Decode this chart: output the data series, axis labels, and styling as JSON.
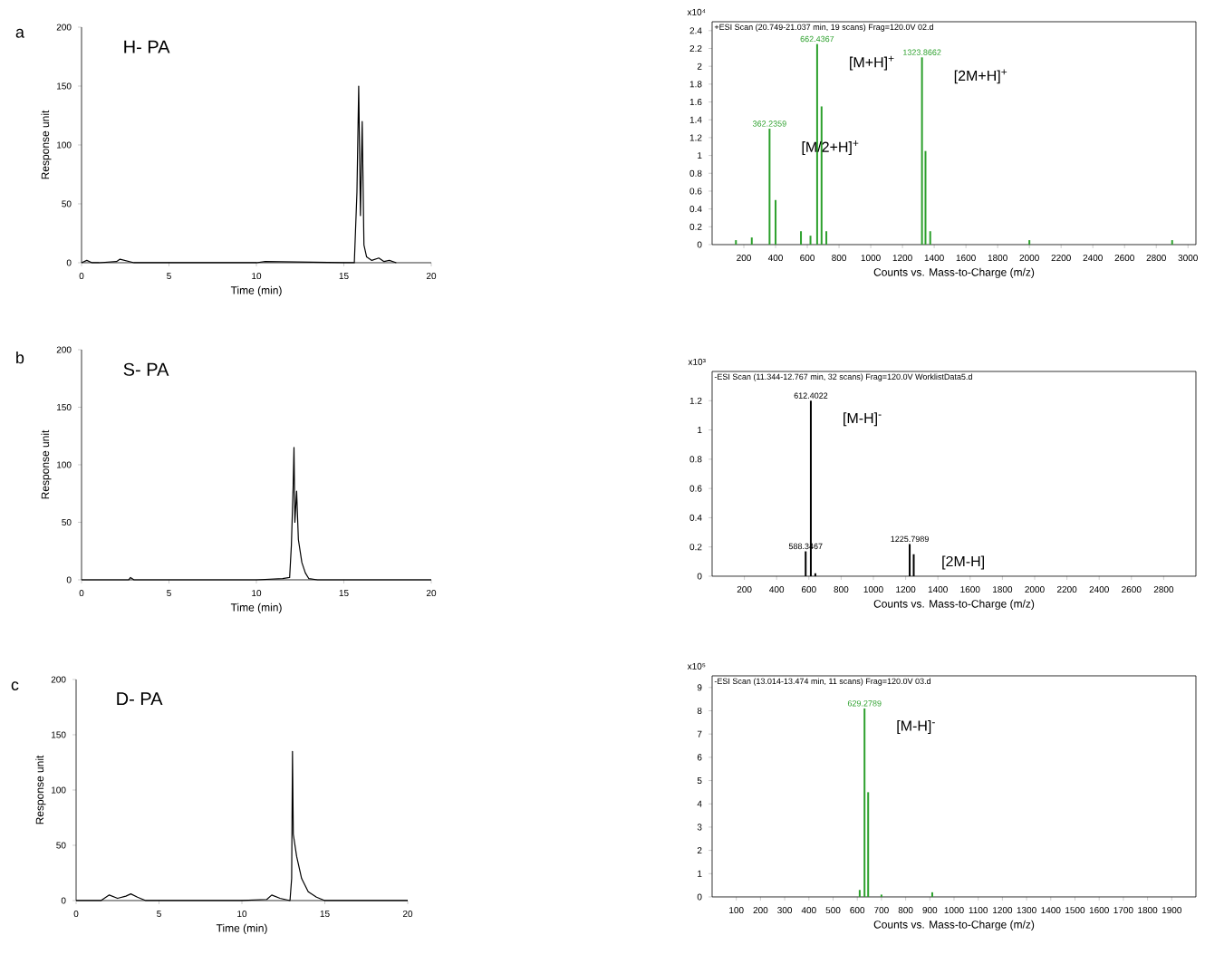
{
  "chart_data": [
    {
      "type": "line",
      "title": "H- PA",
      "xlabel": "Time (min)",
      "ylabel": "Response unit",
      "annotations": [
        "a"
      ],
      "color": "#000000",
      "x": [
        0,
        0.3,
        0.6,
        1,
        2,
        2.2,
        3,
        5,
        10,
        10.5,
        15,
        15.6,
        15.75,
        15.85,
        15.95,
        16.05,
        16.15,
        16.3,
        16.6,
        17,
        17.3,
        17.6,
        18
      ],
      "values": [
        0,
        2,
        0,
        0,
        1,
        3,
        0,
        0,
        0,
        1,
        0,
        0,
        60,
        150,
        40,
        120,
        15,
        5,
        2,
        4,
        1,
        2,
        0
      ],
      "xlim": [
        0,
        20
      ],
      "ylim": [
        0,
        200
      ],
      "xticks": [
        0,
        5,
        10,
        15,
        20
      ],
      "yticks": [
        0,
        50,
        100,
        150,
        200
      ]
    },
    {
      "type": "bar",
      "title": "+ESI Scan (20.749-21.037 min, 19 scans) Frag=120.0V 02.d",
      "xlabel": "Counts vs. Mass-to-Charge (m/z)",
      "annotations": [
        "x10⁴",
        {
          "text": "362.2359",
          "x": 362,
          "y": 1.3
        },
        {
          "text": "662.4367",
          "x": 662,
          "y": 2.25
        },
        {
          "text": "1323.8662",
          "x": 1323,
          "y": 2.1
        },
        {
          "text": "[M/2+H]$^{+}$",
          "x": 362,
          "y": 1.3
        },
        {
          "text": "[M+H]$^{+}$",
          "x": 662,
          "y": 2.25
        },
        {
          "text": "[2M+H]$^{+}$",
          "x": 1323,
          "y": 2.1
        }
      ],
      "color": "#2ca02c",
      "x": [
        150,
        250,
        362,
        400,
        560,
        620,
        662,
        690,
        720,
        1323,
        1345,
        1375,
        2000,
        2900
      ],
      "values": [
        0.05,
        0.08,
        1.3,
        0.5,
        0.15,
        0.1,
        2.25,
        1.55,
        0.15,
        2.1,
        1.05,
        0.15,
        0.05,
        0.05
      ],
      "xlim": [
        0,
        3050
      ],
      "ylim": [
        0,
        2.5
      ],
      "xticks": [
        200,
        400,
        600,
        800,
        1000,
        1200,
        1400,
        1600,
        1800,
        2000,
        2200,
        2400,
        2600,
        2800,
        3000
      ],
      "yticks": [
        0,
        0.2,
        0.4,
        0.6,
        0.8,
        1,
        1.2,
        1.4,
        1.6,
        1.8,
        2,
        2.2,
        2.4
      ]
    },
    {
      "type": "line",
      "title": "S- PA",
      "xlabel": "Time (min)",
      "ylabel": "Response unit",
      "annotations": [
        "b"
      ],
      "color": "#000000",
      "x": [
        0,
        2.7,
        2.8,
        3,
        10,
        11.5,
        11.9,
        12.0,
        12.1,
        12.15,
        12.2,
        12.3,
        12.4,
        12.6,
        12.8,
        13,
        13.5,
        16,
        20
      ],
      "values": [
        0,
        0,
        2,
        0,
        0,
        1,
        2,
        30,
        80,
        115,
        50,
        77,
        35,
        15,
        6,
        1,
        0,
        0,
        0
      ],
      "xlim": [
        0,
        20
      ],
      "ylim": [
        0,
        200
      ],
      "xticks": [
        0,
        5,
        10,
        15,
        20
      ],
      "yticks": [
        0,
        50,
        100,
        150,
        200
      ]
    },
    {
      "type": "bar",
      "title": "-ESI Scan (11.344-12.767 min, 32 scans) Frag=120.0V WorklistData5.d",
      "xlabel": "Counts vs. Mass-to-Charge (m/z)",
      "annotations": [
        "x10³",
        {
          "text": "588.3467",
          "x": 580,
          "y": 0.17
        },
        {
          "text": "612.4022",
          "x": 612,
          "y": 1.2
        },
        {
          "text": "1225.7989",
          "x": 1225,
          "y": 0.22
        },
        {
          "text": "[M-H]$^{-}$",
          "x": 612,
          "y": 1.2
        },
        {
          "text": "[2M-H]",
          "x": 1225,
          "y": 0.22
        }
      ],
      "color": "#000000",
      "x": [
        580,
        612,
        640,
        680,
        1225,
        1250
      ],
      "values": [
        0.17,
        1.2,
        0.02,
        null,
        0.22,
        0.15
      ],
      "xlim": [
        0,
        3000
      ],
      "ylim": [
        0,
        1.4
      ],
      "xticks": [
        200,
        400,
        600,
        800,
        1000,
        1200,
        1400,
        1600,
        1800,
        2000,
        2200,
        2400,
        2600,
        2800
      ],
      "yticks": [
        0,
        0.2,
        0.4,
        0.6,
        0.8,
        1,
        1.2
      ]
    },
    {
      "type": "line",
      "title": "D- PA",
      "xlabel": "Time (min)",
      "ylabel": "Response unit",
      "annotations": [
        "c"
      ],
      "color": "#000000",
      "x": [
        0,
        1.5,
        2,
        2.5,
        3,
        3.3,
        3.7,
        4.2,
        5,
        10,
        11.5,
        11.8,
        12.3,
        12.9,
        13.0,
        13.05,
        13.1,
        13.3,
        13.6,
        14,
        14.5,
        15,
        20
      ],
      "values": [
        0,
        0,
        5,
        2,
        4,
        6,
        3,
        0,
        0,
        0,
        1,
        5,
        2,
        0,
        20,
        135,
        60,
        40,
        20,
        8,
        3,
        0,
        0
      ],
      "xlim": [
        0,
        20
      ],
      "ylim": [
        0,
        200
      ],
      "xticks": [
        0,
        5,
        10,
        15,
        20
      ],
      "yticks": [
        0,
        50,
        100,
        150,
        200
      ]
    },
    {
      "type": "bar",
      "title": "-ESI Scan (13.014-13.474 min, 11 scans) Frag=120.0V 03.d",
      "xlabel": "Counts vs. Mass-to-Charge (m/z)",
      "annotations": [
        "x10⁵",
        {
          "text": "629.2789",
          "x": 630,
          "y": 8.1
        },
        {
          "text": "[M-H]$^{-}$",
          "x": 630,
          "y": 8.1
        }
      ],
      "color": "#2ca02c",
      "x": [
        610,
        630,
        645,
        700,
        910
      ],
      "values": [
        0.3,
        8.1,
        4.5,
        0.1,
        0.2
      ],
      "xlim": [
        0,
        2000
      ],
      "ylim": [
        0,
        9.5
      ],
      "xticks": [
        100,
        200,
        300,
        400,
        500,
        600,
        700,
        800,
        900,
        1000,
        1100,
        1200,
        1300,
        1400,
        1500,
        1600,
        1700,
        1800,
        1900
      ],
      "yticks": [
        0,
        1,
        2,
        3,
        4,
        5,
        6,
        7,
        8,
        9
      ]
    }
  ]
}
